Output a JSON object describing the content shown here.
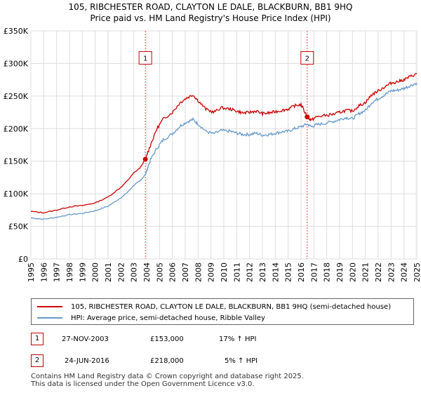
{
  "title_line1": "105, RIBCHESTER ROAD, CLAYTON LE DALE, BLACKBURN, BB1 9HQ",
  "title_line2": "Price paid vs. HM Land Registry's House Price Index (HPI)",
  "chart_data": {
    "type": "line",
    "xlim": [
      1995,
      2025
    ],
    "ylim": [
      0,
      350000
    ],
    "yticks": [
      0,
      50000,
      100000,
      150000,
      200000,
      250000,
      300000,
      350000
    ],
    "ytick_labels": [
      "£0",
      "£50K",
      "£100K",
      "£150K",
      "£200K",
      "£250K",
      "£300K",
      "£350K"
    ],
    "xticks": [
      "1995",
      "1996",
      "1997",
      "1998",
      "1999",
      "2000",
      "2001",
      "2002",
      "2003",
      "2004",
      "2005",
      "2006",
      "2007",
      "2008",
      "2009",
      "2010",
      "2011",
      "2012",
      "2013",
      "2014",
      "2015",
      "2016",
      "2017",
      "2018",
      "2019",
      "2020",
      "2021",
      "2022",
      "2023",
      "2024",
      "2025"
    ],
    "shaded_region": [
      1995,
      1995.1
    ],
    "series": [
      {
        "name": "105, RIBCHESTER ROAD, CLAYTON LE DALE, BLACKBURN, BB1 9HQ (semi-detached house)",
        "color": "#cc0000",
        "x": [
          1995,
          1996,
          1997,
          1998,
          1999,
          2000,
          2001,
          2002,
          2002.5,
          2003,
          2003.5,
          2003.9,
          2004.3,
          2004.8,
          2005.3,
          2006,
          2006.6,
          2007.1,
          2007.6,
          2008,
          2008.6,
          2009.2,
          2009.8,
          2010.5,
          2011,
          2011.5,
          2012,
          2012.5,
          2013,
          2013.5,
          2014,
          2014.5,
          2015,
          2015.5,
          2016,
          2016.48,
          2016.8,
          2017.2,
          2017.8,
          2018.5,
          2019,
          2019.5,
          2020,
          2020.5,
          2021,
          2021.5,
          2022,
          2022.5,
          2023,
          2023.5,
          2024,
          2024.5,
          2025
        ],
        "values": [
          73000,
          71000,
          75000,
          80000,
          82000,
          86000,
          95000,
          110000,
          120000,
          132000,
          140000,
          153000,
          175000,
          200000,
          215000,
          225000,
          240000,
          247000,
          252000,
          243000,
          230000,
          225000,
          232000,
          230000,
          227000,
          224000,
          225000,
          227000,
          223000,
          224000,
          226000,
          228000,
          230000,
          235000,
          237000,
          218000,
          213000,
          218000,
          220000,
          222000,
          225000,
          228000,
          227000,
          235000,
          240000,
          252000,
          258000,
          264000,
          270000,
          272000,
          275000,
          280000,
          284000
        ]
      },
      {
        "name": "HPI: Average price, semi-detached house, Ribble Valley",
        "color": "#6699cc",
        "x": [
          1995,
          1996,
          1997,
          1998,
          1999,
          2000,
          2001,
          2002,
          2002.5,
          2003,
          2003.5,
          2003.9,
          2004.3,
          2004.8,
          2005.3,
          2006,
          2006.6,
          2007.1,
          2007.6,
          2008,
          2008.6,
          2009.2,
          2009.8,
          2010.5,
          2011,
          2011.5,
          2012,
          2012.5,
          2013,
          2013.5,
          2014,
          2014.5,
          2015,
          2015.5,
          2016,
          2016.48,
          2016.8,
          2017.2,
          2017.8,
          2018.5,
          2019,
          2019.5,
          2020,
          2020.5,
          2021,
          2021.5,
          2022,
          2022.5,
          2023,
          2023.5,
          2024,
          2024.5,
          2025
        ],
        "values": [
          63000,
          61000,
          64000,
          68000,
          70000,
          74000,
          81000,
          94000,
          102000,
          113000,
          120000,
          130000,
          152000,
          170000,
          183000,
          192000,
          204000,
          210000,
          214000,
          207000,
          196000,
          192000,
          197000,
          196000,
          193000,
          191000,
          191000,
          193000,
          190000,
          191000,
          193000,
          195000,
          196000,
          200000,
          203000,
          207000,
          203000,
          206000,
          208000,
          211000,
          214000,
          217000,
          215000,
          223000,
          228000,
          240000,
          246000,
          252000,
          258000,
          259000,
          262000,
          266000,
          270000
        ]
      }
    ],
    "sale_markers": [
      {
        "label": "1",
        "x": 2003.9,
        "value": 153000
      },
      {
        "label": "2",
        "x": 2016.48,
        "value": 218000
      }
    ]
  },
  "legend": {
    "red_label": "105, RIBCHESTER ROAD, CLAYTON LE DALE, BLACKBURN, BB1 9HQ (semi-detached house)",
    "blue_label": "HPI: Average price, semi-detached house, Ribble Valley"
  },
  "transactions": [
    {
      "num": "1",
      "date": "27-NOV-2003",
      "price": "£153,000",
      "hpi": "17% ↑ HPI"
    },
    {
      "num": "2",
      "date": "24-JUN-2016",
      "price": "£218,000",
      "hpi": "5% ↑ HPI"
    }
  ],
  "footer_line1": "Contains HM Land Registry data © Crown copyright and database right 2025.",
  "footer_line2": "This data is licensed under the Open Government Licence v3.0."
}
